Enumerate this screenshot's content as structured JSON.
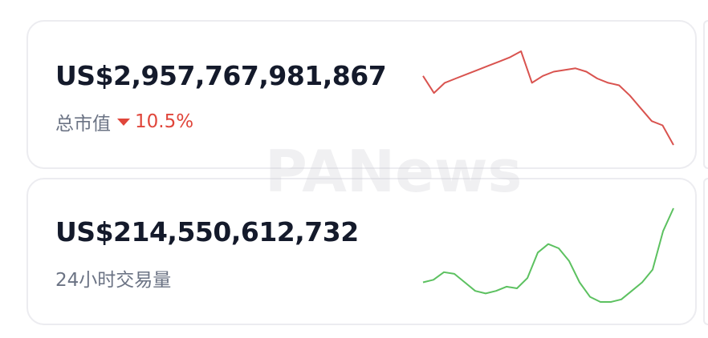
{
  "watermark": "PANews",
  "cards": [
    {
      "amount": "US$2,957,767,981,867",
      "label": "总市值",
      "change": "10.5%",
      "color": "#d9534f",
      "sparkline": [
        83,
        63,
        75,
        80,
        85,
        90,
        95,
        100,
        105,
        112,
        75,
        83,
        88,
        90,
        92,
        88,
        80,
        75,
        72,
        60,
        45,
        30,
        25,
        2
      ]
    },
    {
      "amount": "US$214,550,612,732",
      "label": "24小时交易量",
      "color": "#5cc160",
      "sparkline": [
        25,
        28,
        37,
        35,
        25,
        15,
        12,
        15,
        20,
        18,
        30,
        60,
        70,
        65,
        50,
        25,
        8,
        2,
        2,
        5,
        15,
        25,
        40,
        85,
        112
      ]
    }
  ]
}
